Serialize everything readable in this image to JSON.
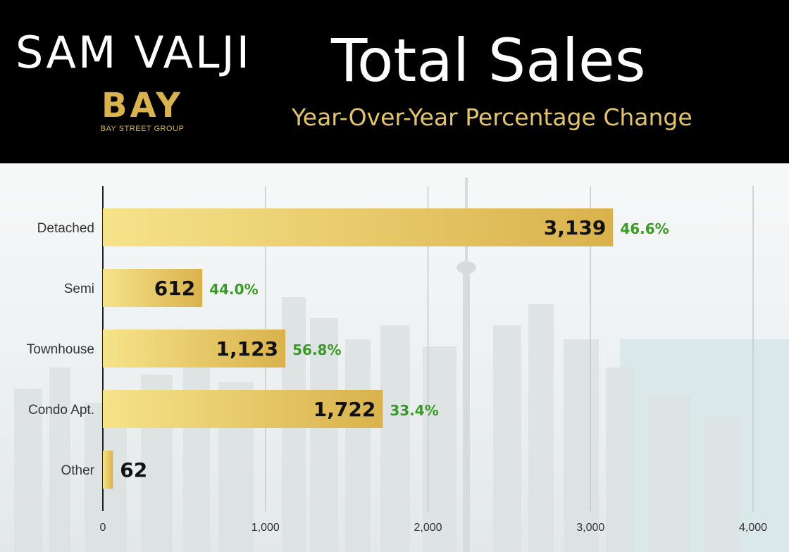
{
  "header": {
    "brand": "SAM VALJI",
    "logo_text": "BAY",
    "logo_subtext": "BAY STREET GROUP",
    "title": "Total Sales",
    "subtitle": "Year-Over-Year Percentage Change"
  },
  "colors": {
    "header_bg": "#000000",
    "gold": "#e2c46d",
    "bar_light": "#f6e38a",
    "bar_dark": "#d9b24c",
    "pct_green": "#3a9a26",
    "grid": "#c9c9c9"
  },
  "chart_data": {
    "type": "bar",
    "orientation": "horizontal",
    "categories": [
      "Detached",
      "Semi",
      "Townhouse",
      "Condo Apt.",
      "Other"
    ],
    "values": [
      3139,
      612,
      1123,
      1722,
      62
    ],
    "value_labels": [
      "3,139",
      "612",
      "1,123",
      "1,722",
      "62"
    ],
    "yoy_change": [
      "46.6%",
      "44.0%",
      "56.8%",
      "33.4%",
      ""
    ],
    "xlim": [
      0,
      4000
    ],
    "xticks": [
      0,
      1000,
      2000,
      3000,
      4000
    ],
    "xtick_labels": [
      "0",
      "1,000",
      "2,000",
      "3,000",
      "4,000"
    ],
    "grid": true
  }
}
